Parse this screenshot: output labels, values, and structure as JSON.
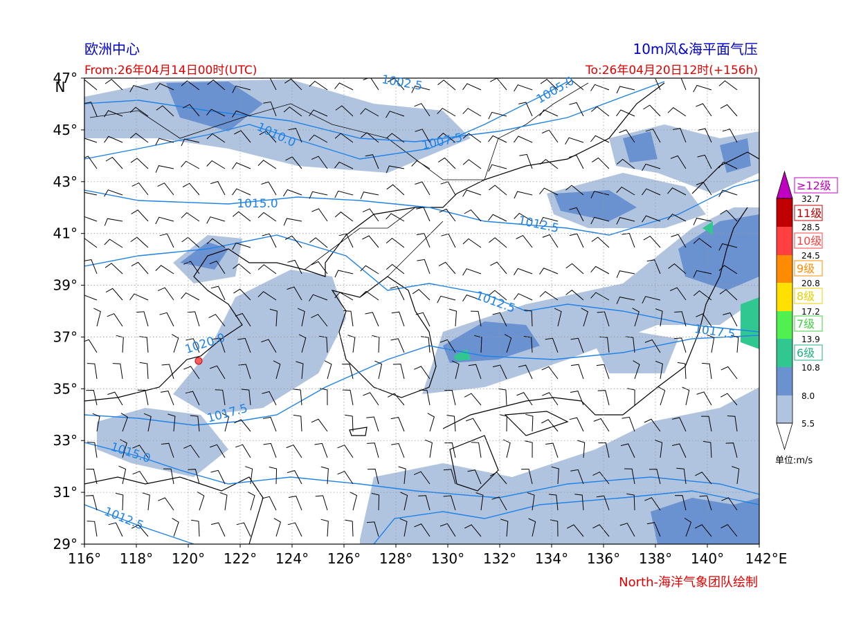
{
  "header": {
    "left_title": "欧洲中心",
    "right_title": "10m风&海平面气压",
    "from": "From:26年04月14日00时(UTC)",
    "to": "To:26年04月20日12时(+156h)"
  },
  "footer": "North-海洋气象团队绘制",
  "map": {
    "lon_ticks": [
      {
        "value": 116,
        "label": "116°"
      },
      {
        "value": 118,
        "label": "118°"
      },
      {
        "value": 120,
        "label": "120°"
      },
      {
        "value": 122,
        "label": "122°"
      },
      {
        "value": 124,
        "label": "124°"
      },
      {
        "value": 126,
        "label": "126°"
      },
      {
        "value": 128,
        "label": "128°"
      },
      {
        "value": 130,
        "label": "130°"
      },
      {
        "value": 132,
        "label": "132°"
      },
      {
        "value": 134,
        "label": "134°"
      },
      {
        "value": 136,
        "label": "136°"
      },
      {
        "value": 138,
        "label": "138°"
      },
      {
        "value": 140,
        "label": "140°"
      },
      {
        "value": 142,
        "label": "142°E"
      }
    ],
    "lat_ticks": [
      {
        "value": 47,
        "label": "47°"
      },
      {
        "value": 45,
        "label": "45°"
      },
      {
        "value": 43,
        "label": "43°"
      },
      {
        "value": 41,
        "label": "41°"
      },
      {
        "value": 39,
        "label": "39°"
      },
      {
        "value": 37,
        "label": "37°"
      },
      {
        "value": 35,
        "label": "35°"
      },
      {
        "value": 33,
        "label": "33°"
      },
      {
        "value": 31,
        "label": "31°"
      },
      {
        "value": 29,
        "label": "29°"
      }
    ],
    "lat_unit": "N",
    "contour_labels": [
      "1002.5",
      "1005.0",
      "1010.0",
      "1007.5",
      "1015.0",
      "1012.5",
      "1012.5",
      "1017.5",
      "1020.0",
      "1017.5",
      "1015.0",
      "1012.5"
    ]
  },
  "colorbar": {
    "levels": [
      "32.7",
      "28.5",
      "24.5",
      "20.8",
      "17.2",
      "13.9",
      "10.8",
      "8.0",
      "5.5"
    ],
    "classes": [
      "≥12级",
      "11级",
      "10级",
      "9级",
      "8级",
      "7级",
      "6级"
    ],
    "unit": "单位:m/s"
  }
}
